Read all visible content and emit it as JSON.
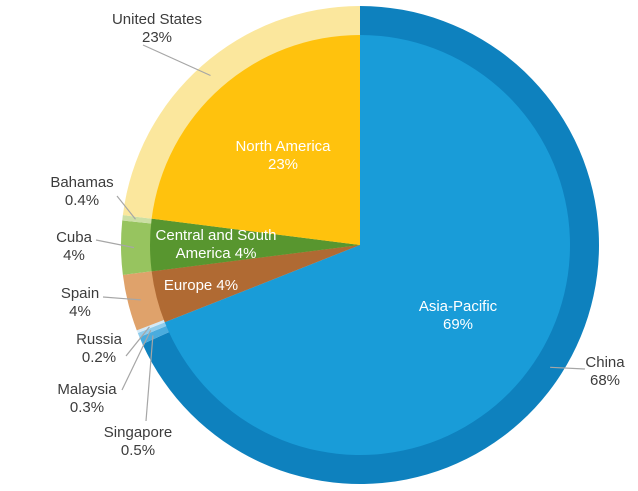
{
  "chart_data": {
    "type": "pie",
    "variant": "nested two-level pie: inner slices are regions, outer ring slices are countries",
    "title": "",
    "direction": "clockwise",
    "start_angle_deg": 0,
    "leader_line_color": "#A6A6A6",
    "outer_label_color": "#3C3C3C",
    "inner_slices": [
      {
        "name": "Asia-Pacific",
        "value": 69,
        "color": "#199CD8",
        "label_color": "#FFFFFF",
        "label_lines": [
          "Asia-Pacific",
          "69%"
        ]
      },
      {
        "name": "Europe",
        "value": 4,
        "color": "#B06A33",
        "label_color": "#FFFFFF",
        "label_lines": [
          "Europe 4%"
        ]
      },
      {
        "name": "Central and South America",
        "value": 4,
        "color": "#58962F",
        "label_color": "#FFFFFF",
        "label_lines": [
          "Central and South",
          "America 4%"
        ]
      },
      {
        "name": "North America",
        "value": 23,
        "color": "#FFC20D",
        "label_color": "#FFFFFF",
        "label_lines": [
          "North America",
          "23%"
        ]
      }
    ],
    "outer_slices": [
      {
        "name": "China",
        "value": 68,
        "display": "68%",
        "region": "Asia-Pacific",
        "color": "#0E81BE",
        "label_lines": [
          "China",
          "68%"
        ]
      },
      {
        "name": "Singapore",
        "value": 0.5,
        "display": "0.5%",
        "region": "Asia-Pacific",
        "color": "#4AACDE",
        "label_lines": [
          "Singapore",
          "0.5%"
        ]
      },
      {
        "name": "Malaysia",
        "value": 0.3,
        "display": "0.3%",
        "region": "Asia-Pacific",
        "color": "#8FCCEC",
        "label_lines": [
          "Malaysia",
          "0.3%"
        ]
      },
      {
        "name": "Russia",
        "value": 0.2,
        "display": "0.2%",
        "region": "Europe",
        "color": "#D3E9F7",
        "label_lines": [
          "Russia",
          "0.2%"
        ]
      },
      {
        "name": "Spain",
        "value": 4,
        "display": "4%",
        "region": "Europe",
        "color": "#DFA26B",
        "label_lines": [
          "Spain",
          "4%"
        ]
      },
      {
        "name": "Cuba",
        "value": 4,
        "display": "4%",
        "region": "Central and South America",
        "color": "#97C45F",
        "label_lines": [
          "Cuba",
          "4%"
        ]
      },
      {
        "name": "Bahamas",
        "value": 0.4,
        "display": "0.4%",
        "region": "Central and South America",
        "color": "#CBDFA3",
        "label_lines": [
          "Bahamas",
          "0.4%"
        ]
      },
      {
        "name": "United States",
        "value": 23,
        "display": "23%",
        "region": "North America",
        "color": "#FBE79D",
        "label_lines": [
          "United States",
          "23%"
        ]
      }
    ]
  }
}
